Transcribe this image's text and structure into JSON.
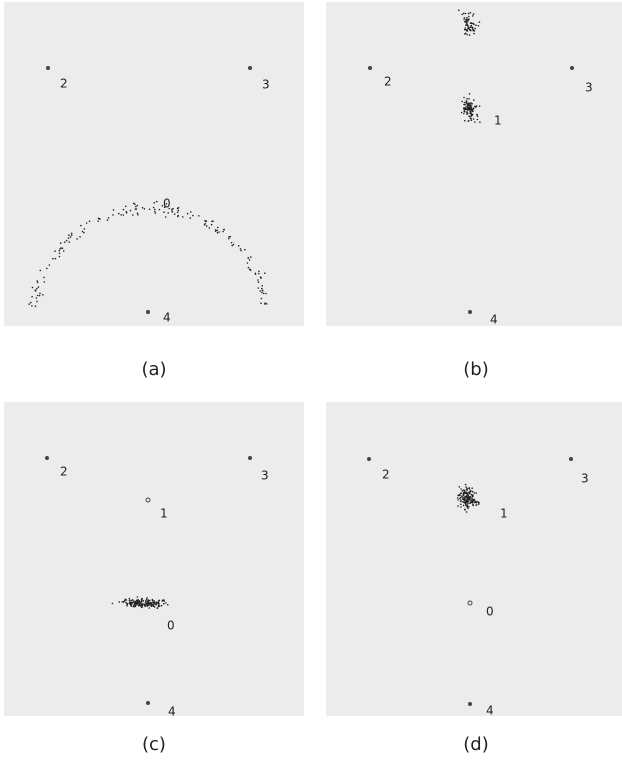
{
  "panels": [
    {
      "caption": "(a)",
      "nodes": [
        "2",
        "3",
        "4",
        "0"
      ]
    },
    {
      "caption": "(b)",
      "nodes": [
        "2",
        "3",
        "1",
        "4"
      ]
    },
    {
      "caption": "(c)",
      "nodes": [
        "2",
        "3",
        "1",
        "0",
        "4"
      ]
    },
    {
      "caption": "(d)",
      "nodes": [
        "2",
        "3",
        "1",
        "0",
        "4"
      ]
    }
  ]
}
